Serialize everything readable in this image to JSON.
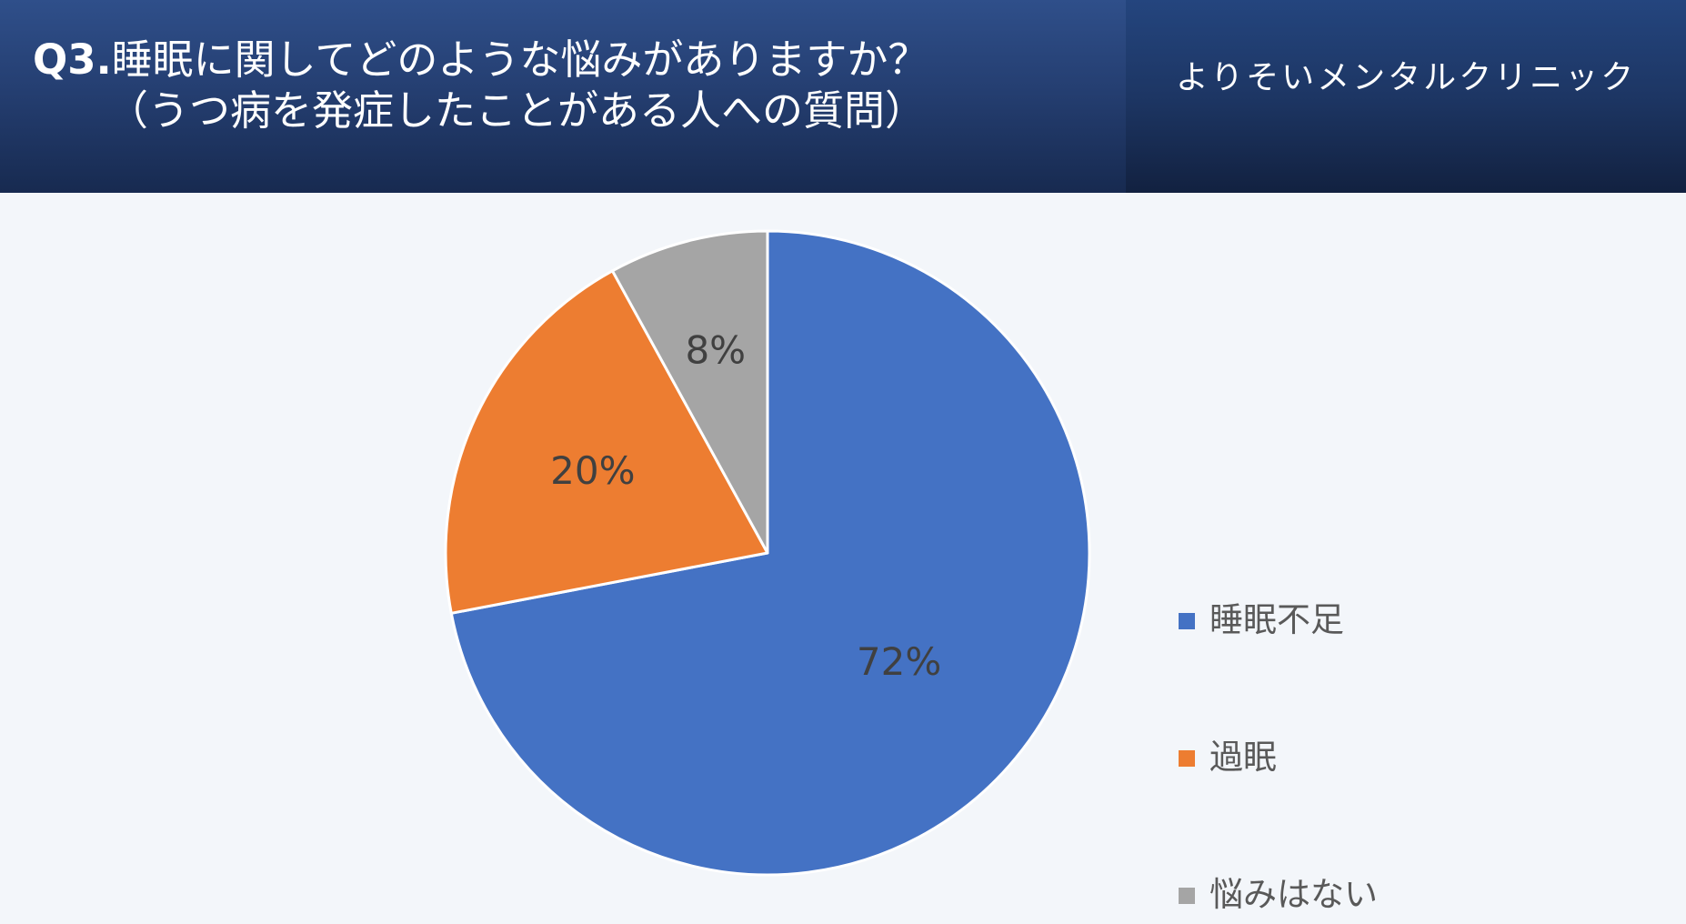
{
  "header": {
    "title_prefix": "Q3.",
    "title_line1_text": "睡眠に関してどのような悩みがありますか？",
    "title_line2": "（うつ病を発症したことがある人への質問）",
    "clinic_name": "よりそいメンタルクリニック"
  },
  "chart_data": {
    "type": "pie",
    "categories": [
      "睡眠不足",
      "過眠",
      "悩みはない"
    ],
    "values": [
      72,
      20,
      8
    ],
    "labels": [
      "72%",
      "20%",
      "8%"
    ],
    "colors": [
      "#4472c4",
      "#ed7d31",
      "#a5a5a5"
    ],
    "legend_position": "right",
    "start_angle": "top",
    "direction": "clockwise"
  }
}
